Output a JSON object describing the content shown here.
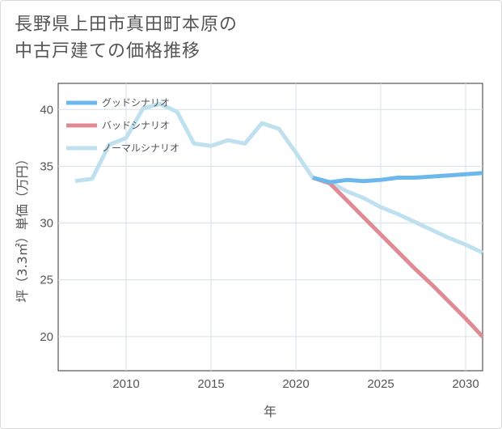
{
  "title": {
    "line1": "長野県上田市真田町本原の",
    "line2": "中古戸建ての価格推移"
  },
  "chart_data": {
    "type": "line",
    "xlabel": "年",
    "ylabel": "坪（3.3㎡）単価（万円）",
    "xlim": [
      2006,
      2031
    ],
    "ylim": [
      17,
      42.3
    ],
    "x_ticks": [
      2010,
      2015,
      2020,
      2025,
      2030
    ],
    "y_ticks": [
      20,
      25,
      30,
      35,
      40
    ],
    "legend_position": "top-left",
    "series": [
      {
        "name": "グッドシナリオ",
        "color": "#6cb8ec",
        "x": [
          2021,
          2022,
          2023,
          2024,
          2025,
          2026,
          2027,
          2028,
          2029,
          2030,
          2031
        ],
        "values": [
          34.0,
          33.6,
          33.8,
          33.7,
          33.8,
          34.0,
          34.0,
          34.1,
          34.2,
          34.3,
          34.4
        ]
      },
      {
        "name": "バッドシナリオ",
        "color": "#e08a94",
        "x": [
          2021,
          2022,
          2023,
          2024,
          2025,
          2026,
          2027,
          2028,
          2029,
          2030,
          2031
        ],
        "values": [
          34.0,
          33.5,
          32.0,
          30.5,
          29.0,
          27.5,
          26.0,
          24.6,
          23.1,
          21.6,
          20.0
        ]
      },
      {
        "name": "ノーマルシナリオ",
        "color": "#bfe0ef",
        "x": [
          2007,
          2008,
          2009,
          2010,
          2011,
          2012,
          2013,
          2014,
          2015,
          2016,
          2017,
          2018,
          2019,
          2020,
          2021,
          2022,
          2023,
          2024,
          2025,
          2026,
          2027,
          2028,
          2029,
          2030,
          2031
        ],
        "values": [
          33.7,
          33.9,
          36.9,
          37.5,
          40.1,
          40.5,
          39.8,
          37.0,
          36.8,
          37.3,
          37.0,
          38.8,
          38.3,
          36.2,
          34.0,
          33.6,
          32.8,
          32.2,
          31.4,
          30.8,
          30.1,
          29.4,
          28.7,
          28.1,
          27.4
        ]
      }
    ]
  }
}
